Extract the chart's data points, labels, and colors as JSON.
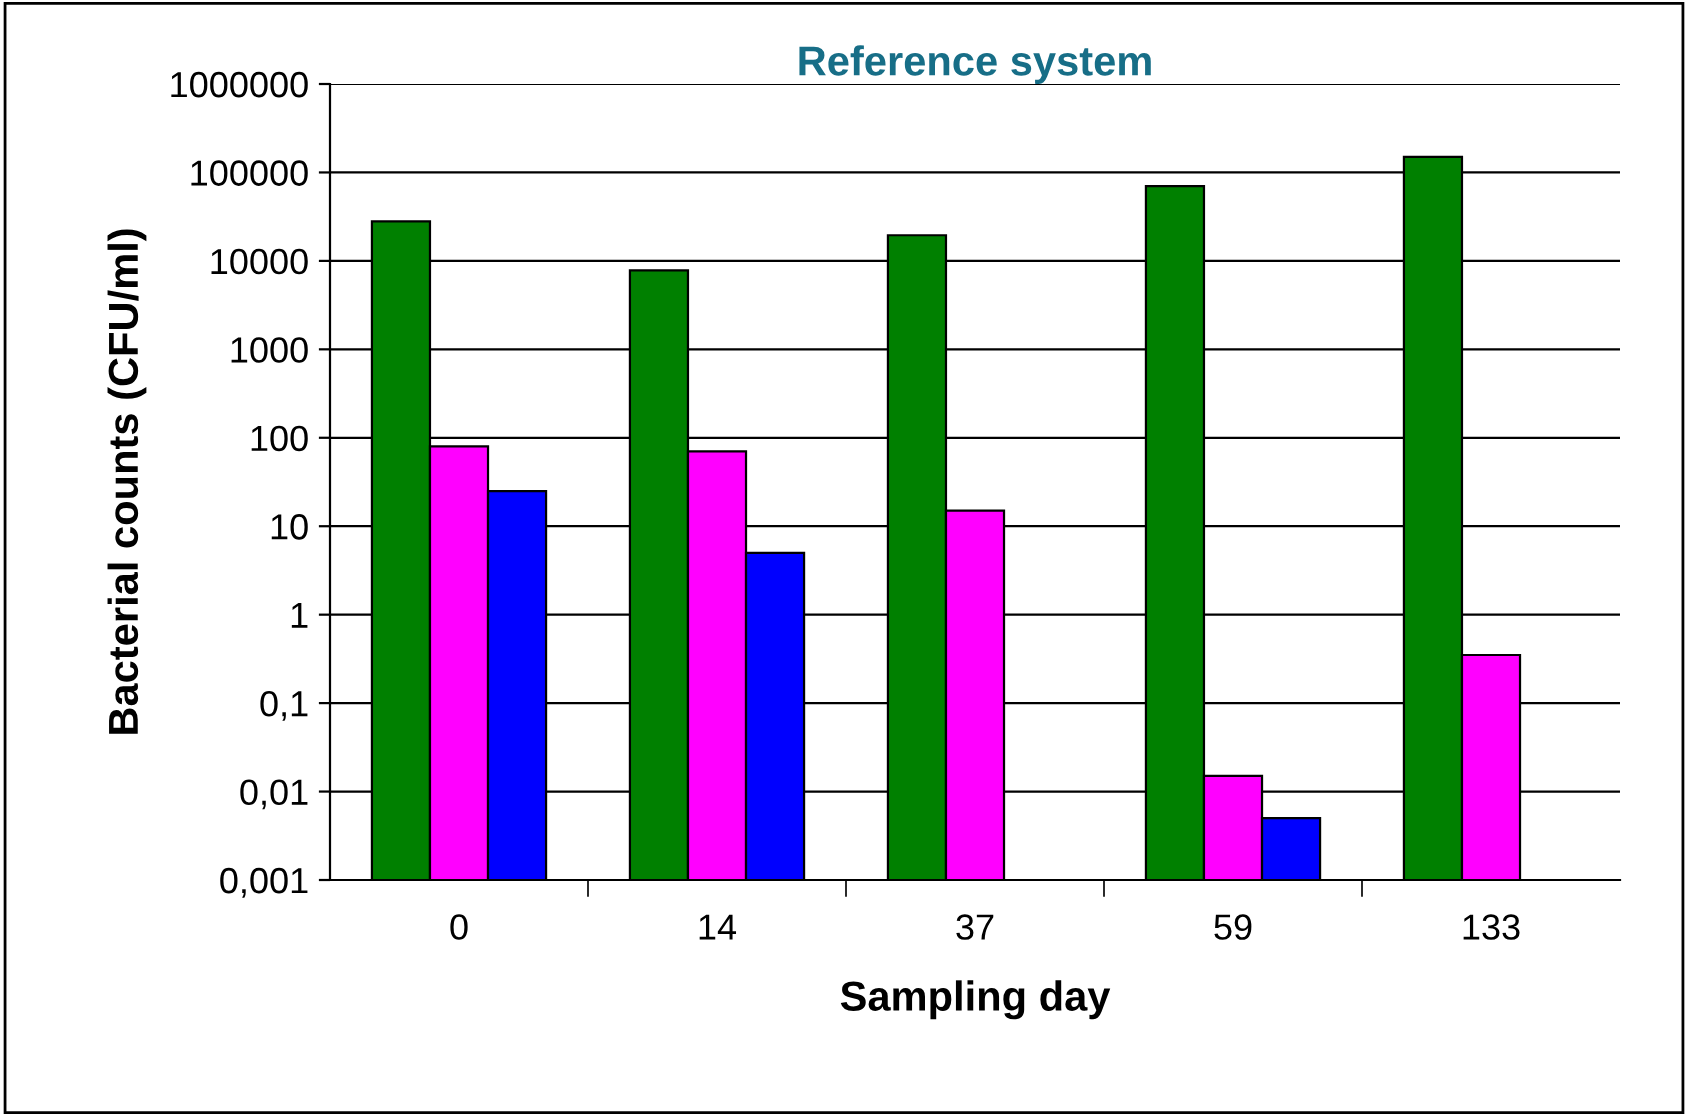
{
  "chart_data": {
    "type": "bar",
    "title": "Reference system",
    "xlabel": "Sampling day",
    "ylabel": "Bacterial counts (CFU/ml)",
    "categories": [
      "0",
      "14",
      "37",
      "59",
      "133"
    ],
    "series": [
      {
        "color": "#008000",
        "values": [
          28000,
          7800,
          19500,
          70000,
          150000
        ]
      },
      {
        "color": "#ff00ff",
        "values": [
          80,
          70,
          15,
          0.015,
          0.35
        ]
      },
      {
        "color": "#0000ff",
        "values": [
          25,
          5,
          null,
          0.005,
          null
        ]
      }
    ],
    "log": true,
    "ylim": [
      0.001,
      1000000
    ],
    "yticks": [
      {
        "value": 0.001,
        "label": "0,001"
      },
      {
        "value": 0.01,
        "label": "0,01"
      },
      {
        "value": 0.1,
        "label": "0,1"
      },
      1,
      10,
      100,
      1000,
      10000,
      100000,
      1000000
    ],
    "grid": "y",
    "legend": false
  }
}
